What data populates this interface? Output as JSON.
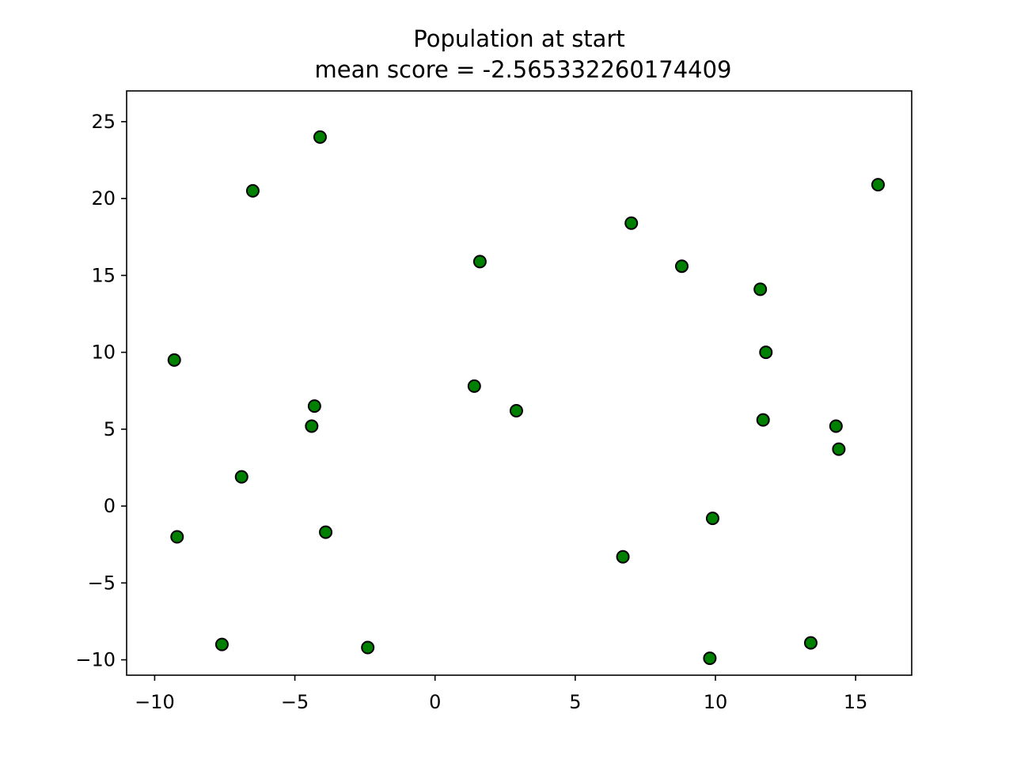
{
  "chart_data": {
    "type": "scatter",
    "title": "Population at start",
    "subtitle": "mean score = -2.565332260174409",
    "xlabel": "",
    "ylabel": "",
    "xlim": [
      -11,
      17
    ],
    "ylim": [
      -11,
      27
    ],
    "xticks": [
      {
        "value": -10,
        "label": "−10"
      },
      {
        "value": -5,
        "label": "−5"
      },
      {
        "value": 0,
        "label": "0"
      },
      {
        "value": 5,
        "label": "5"
      },
      {
        "value": 10,
        "label": "10"
      },
      {
        "value": 15,
        "label": "15"
      }
    ],
    "yticks": [
      {
        "value": -10,
        "label": "−10"
      },
      {
        "value": -5,
        "label": "−5"
      },
      {
        "value": 0,
        "label": "0"
      },
      {
        "value": 5,
        "label": "5"
      },
      {
        "value": 10,
        "label": "10"
      },
      {
        "value": 15,
        "label": "15"
      },
      {
        "value": 20,
        "label": "20"
      },
      {
        "value": 25,
        "label": "25"
      }
    ],
    "grid": false,
    "legend": "none",
    "marker_color": "#008000",
    "marker_edge_color": "#000000",
    "series": [
      {
        "points": [
          {
            "x": -4.1,
            "y": 24.0
          },
          {
            "x": -6.5,
            "y": 20.5
          },
          {
            "x": 15.8,
            "y": 20.9
          },
          {
            "x": 7.0,
            "y": 18.4
          },
          {
            "x": 1.6,
            "y": 15.9
          },
          {
            "x": 8.8,
            "y": 15.6
          },
          {
            "x": 11.6,
            "y": 14.1
          },
          {
            "x": -9.3,
            "y": 9.5
          },
          {
            "x": 11.8,
            "y": 10.0
          },
          {
            "x": 1.4,
            "y": 7.8
          },
          {
            "x": 2.9,
            "y": 6.2
          },
          {
            "x": -4.3,
            "y": 6.5
          },
          {
            "x": -4.4,
            "y": 5.2
          },
          {
            "x": 11.7,
            "y": 5.6
          },
          {
            "x": 14.3,
            "y": 5.2
          },
          {
            "x": 14.4,
            "y": 3.7
          },
          {
            "x": -6.9,
            "y": 1.9
          },
          {
            "x": -9.2,
            "y": -2.0
          },
          {
            "x": -3.9,
            "y": -1.7
          },
          {
            "x": 9.9,
            "y": -0.8
          },
          {
            "x": 6.7,
            "y": -3.3
          },
          {
            "x": -7.6,
            "y": -9.0
          },
          {
            "x": -2.4,
            "y": -9.2
          },
          {
            "x": 9.8,
            "y": -9.9
          },
          {
            "x": 13.4,
            "y": -8.9
          }
        ]
      }
    ]
  }
}
